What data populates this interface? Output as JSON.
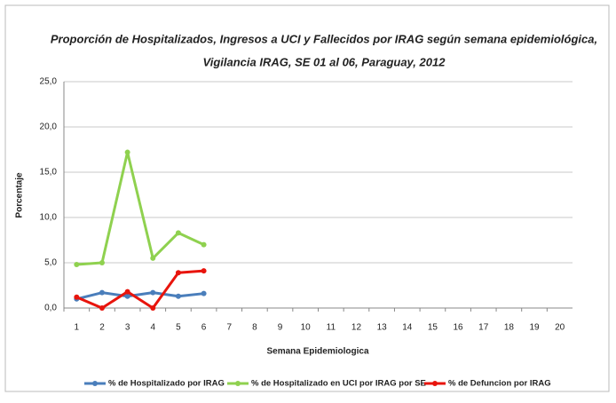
{
  "chart_data": {
    "type": "line",
    "title": [
      "Proporción de Hospitalizados, Ingresos a UCI y Fallecidos por IRAG según semana epidemiológica,",
      "Vigilancia IRAG, SE 01 al 06, Paraguay, 2012"
    ],
    "x_label": "Semana Epidemiologica",
    "y_label": "Porcentaje",
    "categories": [
      "1",
      "2",
      "3",
      "4",
      "5",
      "6",
      "7",
      "8",
      "9",
      "10",
      "11",
      "12",
      "13",
      "14",
      "15",
      "16",
      "17",
      "18",
      "19",
      "20"
    ],
    "series": [
      {
        "name": "% de Hospitalizado por IRAG",
        "color": "#4a7ebb",
        "values": [
          1.0,
          1.7,
          1.3,
          1.7,
          1.3,
          1.6,
          null,
          null,
          null,
          null,
          null,
          null,
          null,
          null,
          null,
          null,
          null,
          null,
          null,
          null
        ]
      },
      {
        "name": "% de Hospitalizado en UCI por IRAG por SE",
        "color": "#8fd14f",
        "values": [
          4.8,
          5.0,
          17.2,
          5.5,
          8.3,
          7.0,
          null,
          null,
          null,
          null,
          null,
          null,
          null,
          null,
          null,
          null,
          null,
          null,
          null,
          null
        ]
      },
      {
        "name": "% de Defuncion por IRAG",
        "color": "#e8140c",
        "values": [
          1.2,
          0.0,
          1.8,
          0.0,
          3.9,
          4.1,
          null,
          null,
          null,
          null,
          null,
          null,
          null,
          null,
          null,
          null,
          null,
          null,
          null,
          null
        ]
      }
    ],
    "ylim": [
      0,
      25
    ],
    "yticks": [
      {
        "value": 0,
        "label": "0,0"
      },
      {
        "value": 5,
        "label": "5,0"
      },
      {
        "value": 10,
        "label": "10,0"
      },
      {
        "value": 15,
        "label": "15,0"
      },
      {
        "value": 20,
        "label": "20,0"
      },
      {
        "value": 25,
        "label": "25,0"
      }
    ],
    "grid": true,
    "legend": "bottom"
  }
}
